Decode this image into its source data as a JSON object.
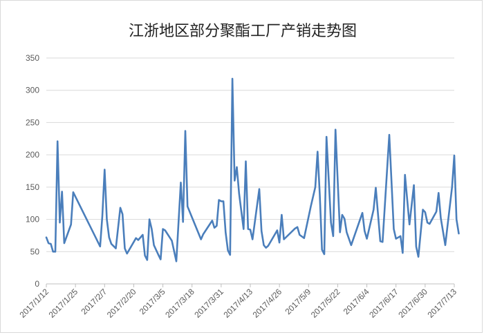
{
  "chart_data": {
    "type": "line",
    "title": "江浙地区部分聚酯工厂产销走势图",
    "xlabel": "",
    "ylabel": "",
    "ylim": [
      0,
      350
    ],
    "yticks": [
      0,
      50,
      100,
      150,
      200,
      250,
      300,
      350
    ],
    "xlim": [
      "2017-01-12",
      "2017-07-13"
    ],
    "xtick_labels": [
      "2017/1/12",
      "2017/1/25",
      "2017/2/7",
      "2017/2/20",
      "2017/3/5",
      "2017/3/18",
      "2017/3/31",
      "2017/4/13",
      "2017/4/26",
      "2017/5/9",
      "2017/5/22",
      "2017/6/4",
      "2017/6/17",
      "2017/6/30",
      "2017/7/13"
    ],
    "grid": "horizontal",
    "legend": "none",
    "line_color": "#4a7ebb",
    "series": [
      {
        "points": [
          [
            "2017-01-12",
            72
          ],
          [
            "2017-01-13",
            63
          ],
          [
            "2017-01-14",
            62
          ],
          [
            "2017-01-15",
            50
          ],
          [
            "2017-01-16",
            50
          ],
          [
            "2017-01-17",
            221
          ],
          [
            "2017-01-18",
            95
          ],
          [
            "2017-01-19",
            143
          ],
          [
            "2017-01-20",
            63
          ],
          [
            "2017-01-23",
            92
          ],
          [
            "2017-01-24",
            142
          ],
          [
            "2017-02-05",
            58
          ],
          [
            "2017-02-06",
            105
          ],
          [
            "2017-02-07",
            177
          ],
          [
            "2017-02-08",
            100
          ],
          [
            "2017-02-09",
            72
          ],
          [
            "2017-02-10",
            62
          ],
          [
            "2017-02-12",
            55
          ],
          [
            "2017-02-14",
            118
          ],
          [
            "2017-02-15",
            108
          ],
          [
            "2017-02-16",
            55
          ],
          [
            "2017-02-17",
            47
          ],
          [
            "2017-02-21",
            71
          ],
          [
            "2017-02-22",
            68
          ],
          [
            "2017-02-24",
            76
          ],
          [
            "2017-02-25",
            44
          ],
          [
            "2017-02-26",
            37
          ],
          [
            "2017-02-27",
            100
          ],
          [
            "2017-02-28",
            85
          ],
          [
            "2017-03-01",
            60
          ],
          [
            "2017-03-03",
            45
          ],
          [
            "2017-03-04",
            38
          ],
          [
            "2017-03-05",
            85
          ],
          [
            "2017-03-06",
            83
          ],
          [
            "2017-03-09",
            67
          ],
          [
            "2017-03-11",
            35
          ],
          [
            "2017-03-13",
            157
          ],
          [
            "2017-03-14",
            96
          ],
          [
            "2017-03-15",
            237
          ],
          [
            "2017-03-16",
            120
          ],
          [
            "2017-03-22",
            69
          ],
          [
            "2017-03-23",
            77
          ],
          [
            "2017-03-27",
            98
          ],
          [
            "2017-03-28",
            87
          ],
          [
            "2017-03-29",
            90
          ],
          [
            "2017-03-30",
            130
          ],
          [
            "2017-03-31",
            128
          ],
          [
            "2017-04-01",
            128
          ],
          [
            "2017-04-02",
            80
          ],
          [
            "2017-04-03",
            52
          ],
          [
            "2017-04-04",
            45
          ],
          [
            "2017-04-05",
            318
          ],
          [
            "2017-04-06",
            160
          ],
          [
            "2017-04-07",
            181
          ],
          [
            "2017-04-08",
            140
          ],
          [
            "2017-04-10",
            85
          ],
          [
            "2017-04-11",
            190
          ],
          [
            "2017-04-12",
            85
          ],
          [
            "2017-04-13",
            84
          ],
          [
            "2017-04-14",
            69
          ],
          [
            "2017-04-17",
            147
          ],
          [
            "2017-04-18",
            82
          ],
          [
            "2017-04-19",
            60
          ],
          [
            "2017-04-20",
            56
          ],
          [
            "2017-04-21",
            59
          ],
          [
            "2017-04-25",
            83
          ],
          [
            "2017-04-26",
            64
          ],
          [
            "2017-04-27",
            107
          ],
          [
            "2017-04-28",
            69
          ],
          [
            "2017-05-03",
            86
          ],
          [
            "2017-05-04",
            88
          ],
          [
            "2017-05-05",
            76
          ],
          [
            "2017-05-07",
            71
          ],
          [
            "2017-05-10",
            120
          ],
          [
            "2017-05-12",
            150
          ],
          [
            "2017-05-13",
            205
          ],
          [
            "2017-05-14",
            138
          ],
          [
            "2017-05-15",
            53
          ],
          [
            "2017-05-16",
            46
          ],
          [
            "2017-05-17",
            228
          ],
          [
            "2017-05-18",
            160
          ],
          [
            "2017-05-19",
            95
          ],
          [
            "2017-05-20",
            74
          ],
          [
            "2017-05-21",
            239
          ],
          [
            "2017-05-22",
            160
          ],
          [
            "2017-05-23",
            80
          ],
          [
            "2017-05-24",
            107
          ],
          [
            "2017-05-25",
            101
          ],
          [
            "2017-05-26",
            80
          ],
          [
            "2017-05-28",
            60
          ],
          [
            "2017-06-02",
            110
          ],
          [
            "2017-06-03",
            82
          ],
          [
            "2017-06-04",
            70
          ],
          [
            "2017-06-07",
            115
          ],
          [
            "2017-06-08",
            149
          ],
          [
            "2017-06-10",
            66
          ],
          [
            "2017-06-11",
            65
          ],
          [
            "2017-06-14",
            231
          ],
          [
            "2017-06-16",
            85
          ],
          [
            "2017-06-17",
            70
          ],
          [
            "2017-06-19",
            74
          ],
          [
            "2017-06-20",
            48
          ],
          [
            "2017-06-21",
            169
          ],
          [
            "2017-06-23",
            92
          ],
          [
            "2017-06-25",
            153
          ],
          [
            "2017-06-26",
            58
          ],
          [
            "2017-06-27",
            42
          ],
          [
            "2017-06-29",
            115
          ],
          [
            "2017-06-30",
            111
          ],
          [
            "2017-07-01",
            95
          ],
          [
            "2017-07-02",
            93
          ],
          [
            "2017-07-05",
            112
          ],
          [
            "2017-07-06",
            141
          ],
          [
            "2017-07-07",
            102
          ],
          [
            "2017-07-09",
            60
          ],
          [
            "2017-07-12",
            150
          ],
          [
            "2017-07-13",
            199
          ],
          [
            "2017-07-14",
            100
          ],
          [
            "2017-07-15",
            78
          ]
        ]
      }
    ]
  }
}
